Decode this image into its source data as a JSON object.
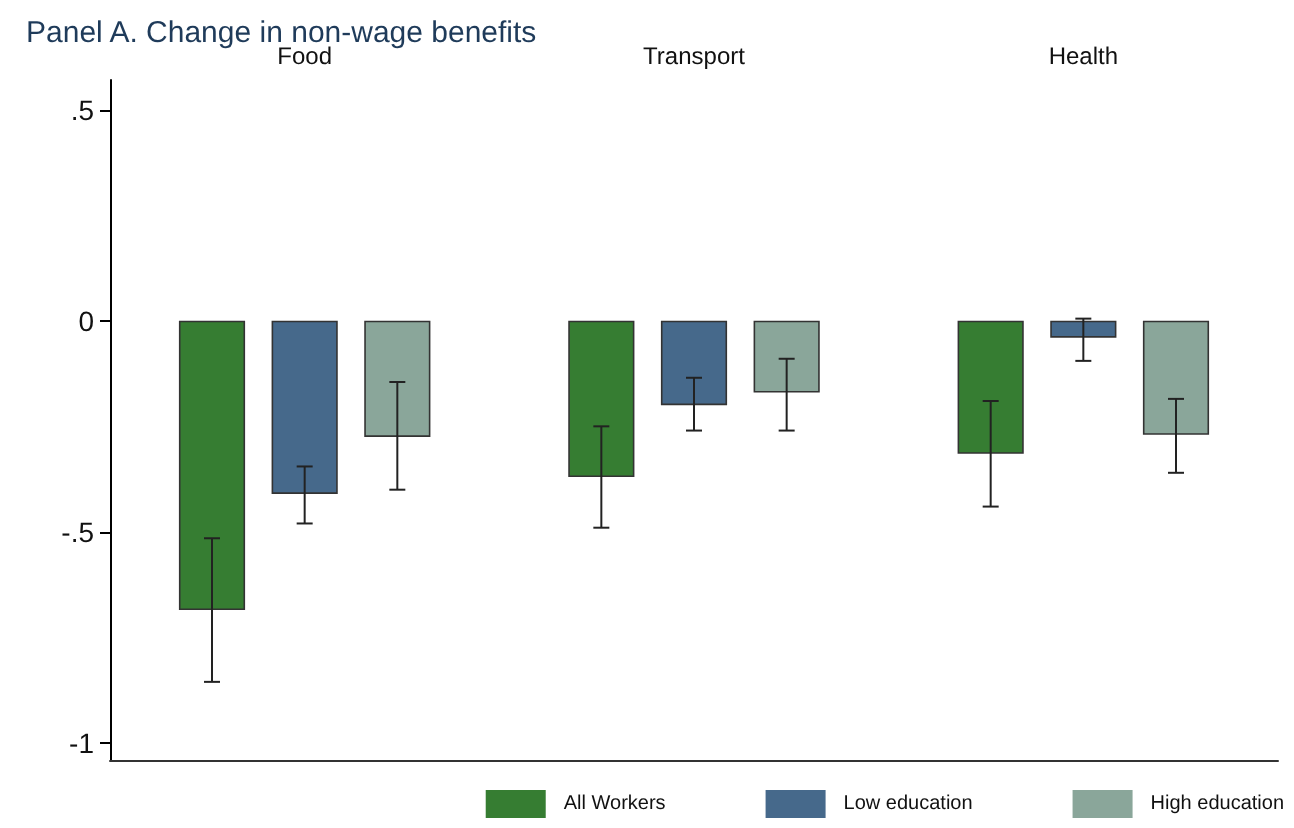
{
  "chart_data": {
    "type": "bar",
    "title": "Panel A. Change in non-wage benefits",
    "categories": [
      "Food",
      "Transport",
      "Health"
    ],
    "series": [
      {
        "name": "All Workers",
        "color": "#367d32",
        "values": [
          -0.685,
          -0.37,
          -0.315
        ],
        "errors": [
          [
            -0.855,
            -0.515
          ],
          [
            -0.49,
            -0.25
          ],
          [
            -0.44,
            -0.19
          ]
        ]
      },
      {
        "name": "Low education",
        "color": "#46698b",
        "values": [
          -0.41,
          -0.2,
          -0.04
        ],
        "errors": [
          [
            -0.48,
            -0.345
          ],
          [
            -0.26,
            -0.135
          ],
          [
            -0.095,
            0.005
          ]
        ]
      },
      {
        "name": "High education",
        "color": "#8aa69a",
        "values": [
          -0.275,
          -0.17,
          -0.27
        ],
        "errors": [
          [
            -0.4,
            -0.145
          ],
          [
            -0.26,
            -0.09
          ],
          [
            -0.36,
            -0.185
          ]
        ]
      }
    ],
    "ylim": [
      -1.04,
      0.57
    ],
    "yticks": [
      {
        "value": -1,
        "label": "-1"
      },
      {
        "value": -0.5,
        "label": "-.5"
      },
      0,
      {
        "value": 0.5,
        "label": ".5"
      }
    ],
    "grid": false,
    "legend": "bottom"
  }
}
